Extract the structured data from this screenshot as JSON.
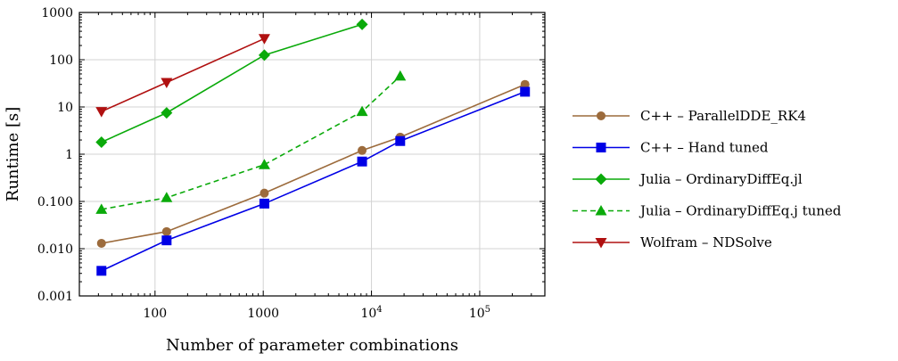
{
  "chart_data": {
    "type": "line",
    "xlabel": "Number of parameter combinations",
    "ylabel": "Runtime [s]",
    "xscale": "log",
    "yscale": "log",
    "xlim": [
      20,
      400000
    ],
    "ylim": [
      0.001,
      1000
    ],
    "grid": true,
    "legend_position": "right",
    "x_ticks": [
      {
        "value": 100,
        "label": "100"
      },
      {
        "value": 1000,
        "label": "1000"
      },
      {
        "value": 10000,
        "label": "10",
        "exp": "4"
      },
      {
        "value": 100000,
        "label": "10",
        "exp": "5"
      }
    ],
    "y_ticks": [
      {
        "value": 0.001,
        "label": "0.001"
      },
      {
        "value": 0.01,
        "label": "0.010"
      },
      {
        "value": 0.1,
        "label": "0.100"
      },
      {
        "value": 1,
        "label": "1"
      },
      {
        "value": 10,
        "label": "10"
      },
      {
        "value": 100,
        "label": "100"
      },
      {
        "value": 1000,
        "label": "1000"
      }
    ],
    "series": [
      {
        "name": "C++ – ParallelDDE_RK4",
        "color": "#9c6b3c",
        "marker": "circle",
        "dash": false,
        "x": [
          32,
          128,
          1024,
          8192,
          18432,
          262144
        ],
        "y": [
          0.013,
          0.023,
          0.15,
          1.2,
          2.3,
          30
        ]
      },
      {
        "name": "C++ – Hand tuned",
        "color": "#0000e6",
        "marker": "square",
        "dash": false,
        "x": [
          32,
          128,
          1024,
          8192,
          18432,
          262144
        ],
        "y": [
          0.0034,
          0.015,
          0.09,
          0.7,
          1.9,
          21
        ]
      },
      {
        "name": "Julia – OrdinaryDiffEq.jl",
        "color": "#0aaa0a",
        "marker": "diamond",
        "dash": false,
        "x": [
          32,
          128,
          1024,
          8192
        ],
        "y": [
          1.8,
          7.5,
          125,
          560
        ]
      },
      {
        "name": "Julia – OrdinaryDiffEq.j tuned",
        "color": "#0aaa0a",
        "marker": "triangle-up",
        "dash": true,
        "x": [
          32,
          128,
          1024,
          8192,
          18432
        ],
        "y": [
          0.068,
          0.12,
          0.6,
          8,
          45
        ]
      },
      {
        "name": "Wolfram – NDSolve",
        "color": "#b01010",
        "marker": "triangle-down",
        "dash": false,
        "x": [
          32,
          128,
          1024
        ],
        "y": [
          8,
          33,
          280
        ]
      }
    ]
  }
}
